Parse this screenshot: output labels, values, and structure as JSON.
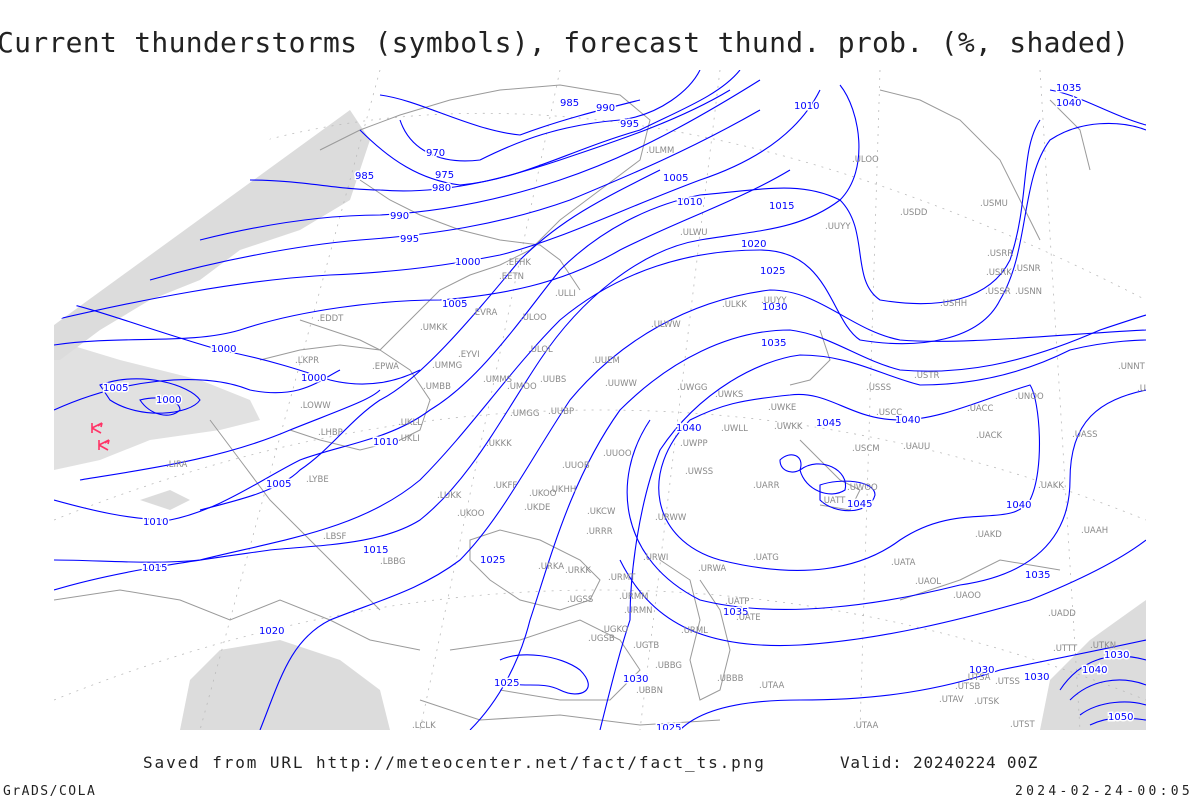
{
  "title": "Current thunderstorms (symbols), forecast thund. prob. (%, shaded)",
  "footer": {
    "saved_from": "Saved from URL http://meteocenter.net/fact/fact_ts.png",
    "valid": "Valid: 20240224 00Z",
    "software": "GrADS/COLA",
    "timestamp": "2024-02-24-00:05"
  },
  "colors": {
    "isobar": "#0000ff",
    "coastline": "#9a9a9a",
    "shading": "#d9d9d9",
    "thunderstorm_symbol": "#ff3366"
  },
  "isobar_labels": [
    "985",
    "990",
    "995",
    "970",
    "975",
    "980",
    "985",
    "990",
    "995",
    "1000",
    "1005",
    "1000",
    "1000",
    "1005",
    "1000",
    "1010",
    "1005",
    "1010",
    "1015",
    "1015",
    "1020",
    "1025",
    "1025",
    "1030",
    "1025",
    "1005",
    "1010",
    "1015",
    "1020",
    "1025",
    "1030",
    "1035",
    "1040",
    "1045",
    "1045",
    "1040",
    "1040",
    "1035",
    "1035",
    "1030",
    "1030",
    "1030",
    "1040",
    "1050",
    "1010",
    "1035",
    "1040"
  ],
  "stations": [
    "ULMM",
    "ULOO",
    "USDD",
    "USMU",
    "UUYY",
    "ULWU",
    "EFHK",
    "EETN",
    "ULLI",
    "USRR",
    "USRK",
    "USNR",
    "USSR",
    "USNN",
    "USHH",
    "UUYY",
    "ULKK",
    "EVRA",
    "ULOO",
    "UMKK",
    "ULWW",
    "EDDT",
    "EYVI",
    "ULOL",
    "UUEM",
    "LKPR",
    "EPWA",
    "UMMG",
    "UMMS",
    "UMOO",
    "UUBS",
    "UUWW",
    "UWGG",
    "UWKS",
    "USSS",
    "USTR",
    "UMBB",
    "LOWW",
    "UKLL",
    "UMGG",
    "UUBP",
    "USCC",
    "UACC",
    "UNOO",
    "UNNT",
    "UNBB",
    "UWKE",
    "UWLL",
    "UWKK",
    "LHBP",
    "UKLI",
    "UKKK",
    "UACK",
    "UASS",
    "USCM",
    "UAUU",
    "UWPP",
    "UUOO",
    "LIRA",
    "UUOB",
    "UWSS",
    "UAKK",
    "UARR",
    "UWOO",
    "UATT",
    "LYBE",
    "UKHH",
    "UKOO",
    "UKFF",
    "LUKK",
    "UKOO",
    "UKDE",
    "UKCW",
    "URWW",
    "URRR",
    "UAKD",
    "UAAH",
    "LBSF",
    "LBBG",
    "URKA",
    "URKK",
    "URWI",
    "UATG",
    "UATA",
    "UAOL",
    "URMT",
    "URWA",
    "URMM",
    "URMN",
    "UATP",
    "UATE",
    "UAOO",
    "UADD",
    "UGSS",
    "UGKO",
    "UGSB",
    "UGTB",
    "URML",
    "UBBG",
    "UBBN",
    "UBBB",
    "UTAA",
    "UTTT",
    "UTKN",
    "UTSB",
    "UTSA",
    "UTSS",
    "UTAV",
    "UTSK",
    "UTST",
    "UTAA",
    "LCLK"
  ],
  "thunderstorm_reports": 3
}
